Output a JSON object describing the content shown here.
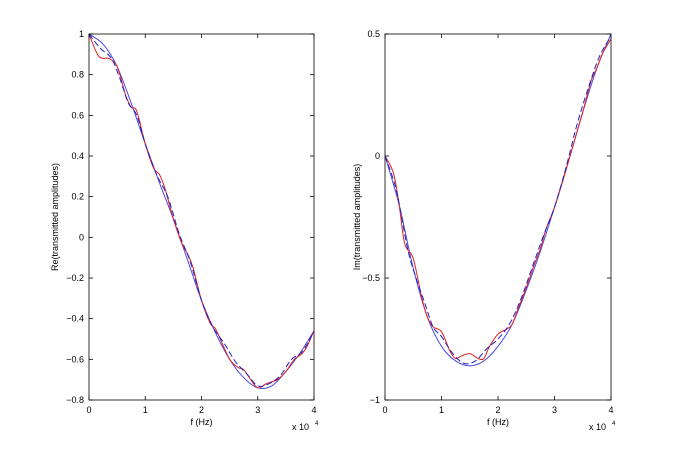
{
  "chart_data": [
    {
      "type": "line",
      "xlabel": "f (Hz)",
      "ylabel": "Re(transmitted amplitudes)",
      "xlim": [
        0,
        40000
      ],
      "ylim": [
        -0.8,
        1
      ],
      "x_ticks": [
        0,
        1,
        2,
        3,
        4
      ],
      "x_tick_labels": [
        "0",
        "1",
        "2",
        "3",
        "4"
      ],
      "x_exponent": {
        "base": "x 10",
        "power": "4"
      },
      "y_ticks": [
        1,
        0.8,
        0.6,
        0.4,
        0.2,
        0,
        -0.2,
        -0.4,
        -0.6,
        -0.8
      ],
      "y_tick_labels": [
        "1",
        "0.8",
        "0.6",
        "0.4",
        "0.2",
        "0",
        "−0.2",
        "−0.4",
        "−0.6",
        "−0.8"
      ],
      "grid": false,
      "series": [
        {
          "color": "#4a4adf",
          "dash": "solid",
          "x": [
            0,
            2500,
            5000,
            7500,
            10000,
            12500,
            15000,
            17500,
            20000,
            22500,
            25000,
            27500,
            30000,
            32500,
            35000,
            37500,
            40000
          ],
          "y": [
            1.0,
            0.95,
            0.84,
            0.66,
            0.46,
            0.27,
            0.09,
            -0.11,
            -0.31,
            -0.47,
            -0.6,
            -0.69,
            -0.74,
            -0.73,
            -0.66,
            -0.57,
            -0.46
          ]
        },
        {
          "color": "#e02020",
          "dash": "solid",
          "x": [
            0,
            1500,
            2500,
            3500,
            5000,
            6500,
            7500,
            8500,
            10000,
            11500,
            12500,
            13500,
            15000,
            16500,
            17500,
            18500,
            20000,
            21500,
            22500,
            23500,
            25000,
            26500,
            27500,
            28500,
            30000,
            31500,
            32500,
            33500,
            35000,
            36500,
            37500,
            38500,
            40000
          ],
          "y": [
            1.0,
            0.9,
            0.88,
            0.88,
            0.84,
            0.7,
            0.64,
            0.62,
            0.46,
            0.34,
            0.31,
            0.24,
            0.09,
            -0.03,
            -0.08,
            -0.15,
            -0.31,
            -0.42,
            -0.45,
            -0.51,
            -0.6,
            -0.64,
            -0.65,
            -0.69,
            -0.74,
            -0.72,
            -0.71,
            -0.7,
            -0.66,
            -0.6,
            -0.58,
            -0.55,
            -0.46
          ]
        },
        {
          "color": "#2020c0",
          "dash": "dashed",
          "x": [
            0,
            2000,
            4000,
            5500,
            7000,
            8500,
            10000,
            12000,
            14000,
            16000,
            18000,
            20000,
            22000,
            24000,
            26000,
            28000,
            30000,
            32000,
            34000,
            36000,
            38000,
            40000
          ],
          "y": [
            1.0,
            0.93,
            0.88,
            0.78,
            0.66,
            0.6,
            0.46,
            0.31,
            0.2,
            0.02,
            -0.12,
            -0.31,
            -0.44,
            -0.52,
            -0.61,
            -0.67,
            -0.73,
            -0.72,
            -0.68,
            -0.6,
            -0.56,
            -0.46
          ]
        }
      ]
    },
    {
      "type": "line",
      "xlabel": "f (Hz)",
      "ylabel": "Im(transmitted amplitudes)",
      "xlim": [
        0,
        40000
      ],
      "ylim": [
        -1,
        0.5
      ],
      "x_ticks": [
        0,
        1,
        2,
        3,
        4
      ],
      "x_tick_labels": [
        "0",
        "1",
        "2",
        "3",
        "4"
      ],
      "x_exponent": {
        "base": "x 10",
        "power": "4"
      },
      "y_ticks": [
        0.5,
        0,
        -0.5,
        -1
      ],
      "y_tick_labels": [
        "0.5",
        "0",
        "−0.5",
        "−1"
      ],
      "grid": false,
      "series": [
        {
          "color": "#4a4adf",
          "dash": "solid",
          "x": [
            0,
            2500,
            5000,
            7500,
            10000,
            12500,
            15000,
            17500,
            20000,
            22500,
            25000,
            27500,
            30000,
            32500,
            35000,
            37500,
            40000
          ],
          "y": [
            0.0,
            -0.2,
            -0.46,
            -0.66,
            -0.78,
            -0.84,
            -0.86,
            -0.84,
            -0.78,
            -0.69,
            -0.55,
            -0.39,
            -0.21,
            -0.02,
            0.18,
            0.36,
            0.5
          ]
        },
        {
          "color": "#e02020",
          "dash": "solid",
          "x": [
            0,
            1500,
            2500,
            3500,
            5000,
            6500,
            7500,
            8500,
            10000,
            11500,
            12500,
            13500,
            15000,
            16500,
            17500,
            18500,
            20000,
            21500,
            22500,
            23500,
            25000,
            26500,
            27500,
            28500,
            30000,
            31500,
            32500,
            33500,
            35000,
            36500,
            37500,
            38500,
            40000
          ],
          "y": [
            0.0,
            -0.07,
            -0.2,
            -0.36,
            -0.42,
            -0.58,
            -0.66,
            -0.7,
            -0.72,
            -0.8,
            -0.83,
            -0.82,
            -0.81,
            -0.83,
            -0.83,
            -0.78,
            -0.73,
            -0.71,
            -0.69,
            -0.63,
            -0.54,
            -0.44,
            -0.38,
            -0.3,
            -0.21,
            -0.1,
            -0.02,
            0.06,
            0.18,
            0.31,
            0.36,
            0.42,
            0.48
          ]
        },
        {
          "color": "#2020c0",
          "dash": "dashed",
          "x": [
            0,
            2000,
            4000,
            5500,
            7000,
            8500,
            10000,
            12000,
            14000,
            16000,
            18000,
            20000,
            22000,
            24000,
            26000,
            28000,
            30000,
            32000,
            34000,
            36000,
            38000,
            40000
          ],
          "y": [
            0.0,
            -0.14,
            -0.38,
            -0.5,
            -0.6,
            -0.7,
            -0.74,
            -0.81,
            -0.85,
            -0.84,
            -0.79,
            -0.75,
            -0.69,
            -0.59,
            -0.46,
            -0.33,
            -0.21,
            -0.05,
            0.13,
            0.28,
            0.41,
            0.49
          ]
        }
      ]
    }
  ]
}
